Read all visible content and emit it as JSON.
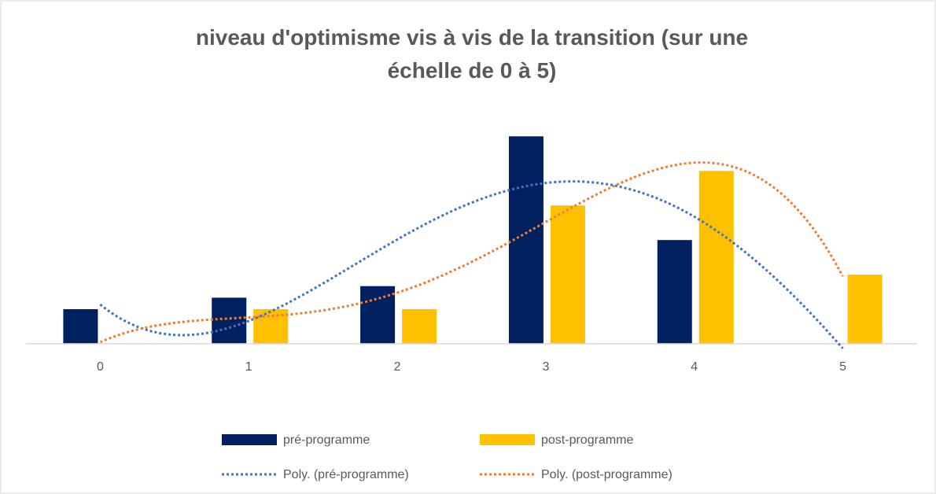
{
  "chart_data": {
    "type": "bar",
    "title": "niveau d'optimisme vis à vis de la transition (sur une échelle de 0 à 5)",
    "categories": [
      "0",
      "1",
      "2",
      "3",
      "4",
      "5"
    ],
    "series": [
      {
        "name": "pré-programme",
        "color": "#002060",
        "values": [
          3,
          4,
          5,
          18,
          9,
          0
        ],
        "trendline": {
          "name": "Poly. (pré-programme)",
          "color": "#4472c4"
        }
      },
      {
        "name": "post-programme",
        "color": "#ffc000",
        "values": [
          0,
          3,
          3,
          12,
          15,
          6
        ],
        "trendline": {
          "name": "Poly. (post-programme)",
          "color": "#ed7d31"
        }
      }
    ],
    "ylim": [
      0,
      20
    ],
    "grid": false,
    "legend": "bottom"
  }
}
